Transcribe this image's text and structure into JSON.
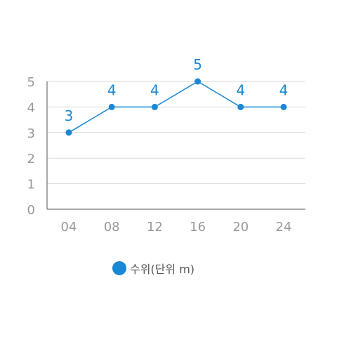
{
  "chart_data": {
    "type": "line",
    "categories": [
      "04",
      "08",
      "12",
      "16",
      "20",
      "24"
    ],
    "y_ticks": [
      "0",
      "1",
      "2",
      "3",
      "4",
      "5"
    ],
    "ylim": [
      0,
      5
    ],
    "grid": true,
    "legend_position": "bottom",
    "series": [
      {
        "name": "수위(단위 m)",
        "values": [
          3,
          4,
          4,
          5,
          4,
          4
        ],
        "data_labels": [
          "3",
          "4",
          "4",
          "5",
          "4",
          "4"
        ]
      }
    ],
    "colors": {
      "series": "#1a87d4",
      "grid": "#d9d9d9",
      "axis": "#555555",
      "tick": "#999999"
    }
  }
}
